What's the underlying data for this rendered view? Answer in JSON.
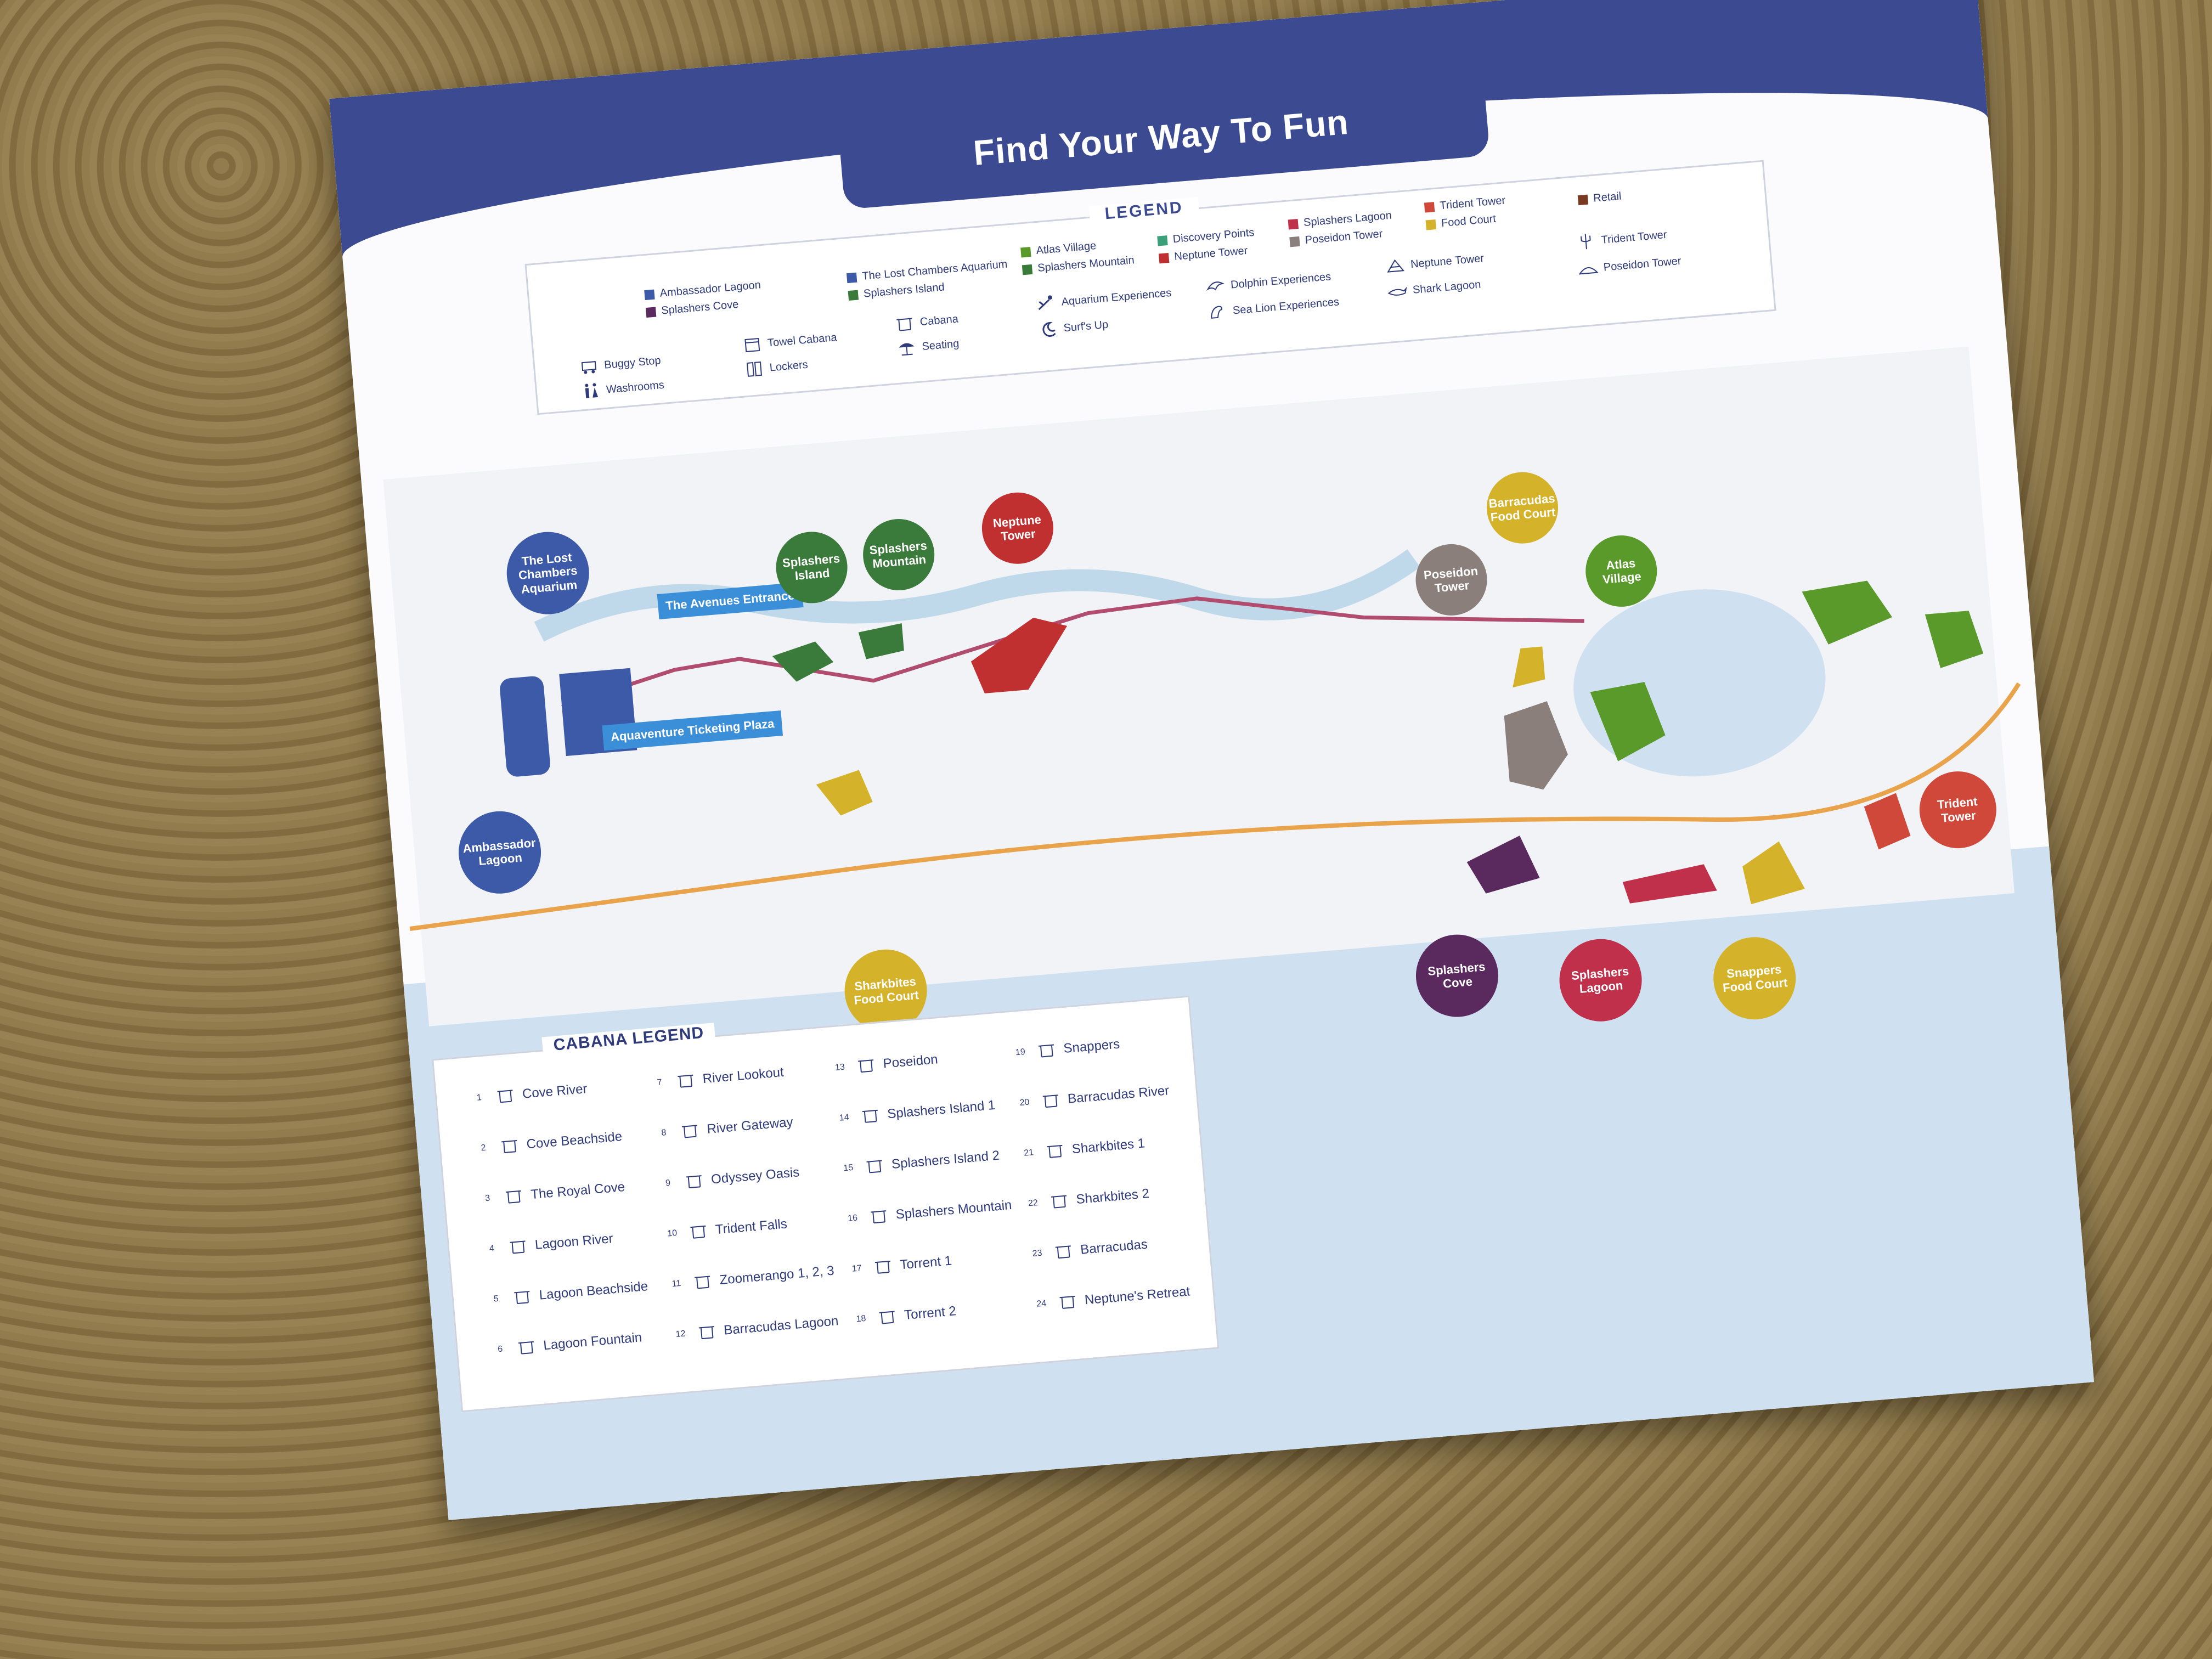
{
  "title": "Find Your Way To Fun",
  "legend": {
    "heading": "LEGEND",
    "areas": [
      {
        "label": "Ambassador Lagoon",
        "color": "#3c5aa8"
      },
      {
        "label": "Splashers Cove",
        "color": "#5a2a5e"
      },
      {
        "label": "The Lost Chambers Aquarium",
        "color": "#3c5aa8"
      },
      {
        "label": "Splashers Island",
        "color": "#3a7a3a"
      },
      {
        "label": "Atlas Village",
        "color": "#5a9a2a"
      },
      {
        "label": "Splashers Mountain",
        "color": "#3a7a3a"
      },
      {
        "label": "Discovery Points",
        "color": "#3aa07a"
      },
      {
        "label": "Neptune Tower",
        "color": "#c03030"
      },
      {
        "label": "Splashers Lagoon",
        "color": "#c0304a"
      },
      {
        "label": "Poseidon Tower",
        "color": "#8a7f7a"
      },
      {
        "label": "Trident Tower",
        "color": "#d0483a"
      },
      {
        "label": "Food Court",
        "color": "#d4b22a"
      },
      {
        "label": "Retail",
        "color": "#7a3a22"
      }
    ],
    "icons": [
      {
        "label": "Buggy Stop",
        "icon": "buggy-icon"
      },
      {
        "label": "Washrooms",
        "icon": "washroom-icon"
      },
      {
        "label": "Towel Cabana",
        "icon": "towel-icon"
      },
      {
        "label": "Lockers",
        "icon": "locker-icon"
      },
      {
        "label": "Cabana",
        "icon": "cabana-icon"
      },
      {
        "label": "Seating",
        "icon": "seating-icon"
      },
      {
        "label": "Aquarium Experiences",
        "icon": "diver-icon"
      },
      {
        "label": "Surf's Up",
        "icon": "wave-icon"
      },
      {
        "label": "Dolphin Experiences",
        "icon": "dolphin-icon"
      },
      {
        "label": "Sea Lion Experiences",
        "icon": "sealion-icon"
      },
      {
        "label": "Neptune Tower",
        "icon": "tower-icon"
      },
      {
        "label": "Shark Lagoon",
        "icon": "shark-icon"
      },
      {
        "label": "Trident Tower",
        "icon": "trident-icon"
      },
      {
        "label": "Poseidon Tower",
        "icon": "poseidon-icon"
      }
    ]
  },
  "map_labels": {
    "lost_chambers": "The Lost Chambers Aquarium",
    "ambassador": "Ambassador Lagoon",
    "avenues": "The Avenues Entrance",
    "ticketing": "Aquaventure Ticketing Plaza",
    "splashers_island": "Splashers Island",
    "splashers_mountain": "Splashers Mountain",
    "neptune": "Neptune Tower",
    "sharkbites": "Sharkbites Food Court",
    "barracudas": "Barracudas Food Court",
    "poseidon": "Poseidon Tower",
    "atlas": "Atlas Village",
    "splashers_cove": "Splashers Cove",
    "splashers_lagoon": "Splashers Lagoon",
    "snappers": "Snappers Food Court",
    "trident": "Trident Tower"
  },
  "cabana_legend": {
    "heading": "CABANA LEGEND",
    "items": [
      {
        "n": "1",
        "label": "Cove River"
      },
      {
        "n": "2",
        "label": "Cove Beachside"
      },
      {
        "n": "3",
        "label": "The Royal Cove"
      },
      {
        "n": "4",
        "label": "Lagoon River"
      },
      {
        "n": "5",
        "label": "Lagoon Beachside"
      },
      {
        "n": "6",
        "label": "Lagoon Fountain"
      },
      {
        "n": "7",
        "label": "River Lookout"
      },
      {
        "n": "8",
        "label": "River Gateway"
      },
      {
        "n": "9",
        "label": "Odyssey Oasis"
      },
      {
        "n": "10",
        "label": "Trident Falls"
      },
      {
        "n": "11",
        "label": "Zoomerango 1, 2, 3"
      },
      {
        "n": "12",
        "label": "Barracudas Lagoon"
      },
      {
        "n": "13",
        "label": "Poseidon"
      },
      {
        "n": "14",
        "label": "Splashers Island 1"
      },
      {
        "n": "15",
        "label": "Splashers Island 2"
      },
      {
        "n": "16",
        "label": "Splashers Mountain"
      },
      {
        "n": "17",
        "label": "Torrent 1"
      },
      {
        "n": "18",
        "label": "Torrent 2"
      },
      {
        "n": "19",
        "label": "Snappers"
      },
      {
        "n": "20",
        "label": "Barracudas River"
      },
      {
        "n": "21",
        "label": "Sharkbites 1"
      },
      {
        "n": "22",
        "label": "Sharkbites 2"
      },
      {
        "n": "23",
        "label": "Barracudas"
      },
      {
        "n": "24",
        "label": "Neptune's Retreat"
      }
    ]
  }
}
